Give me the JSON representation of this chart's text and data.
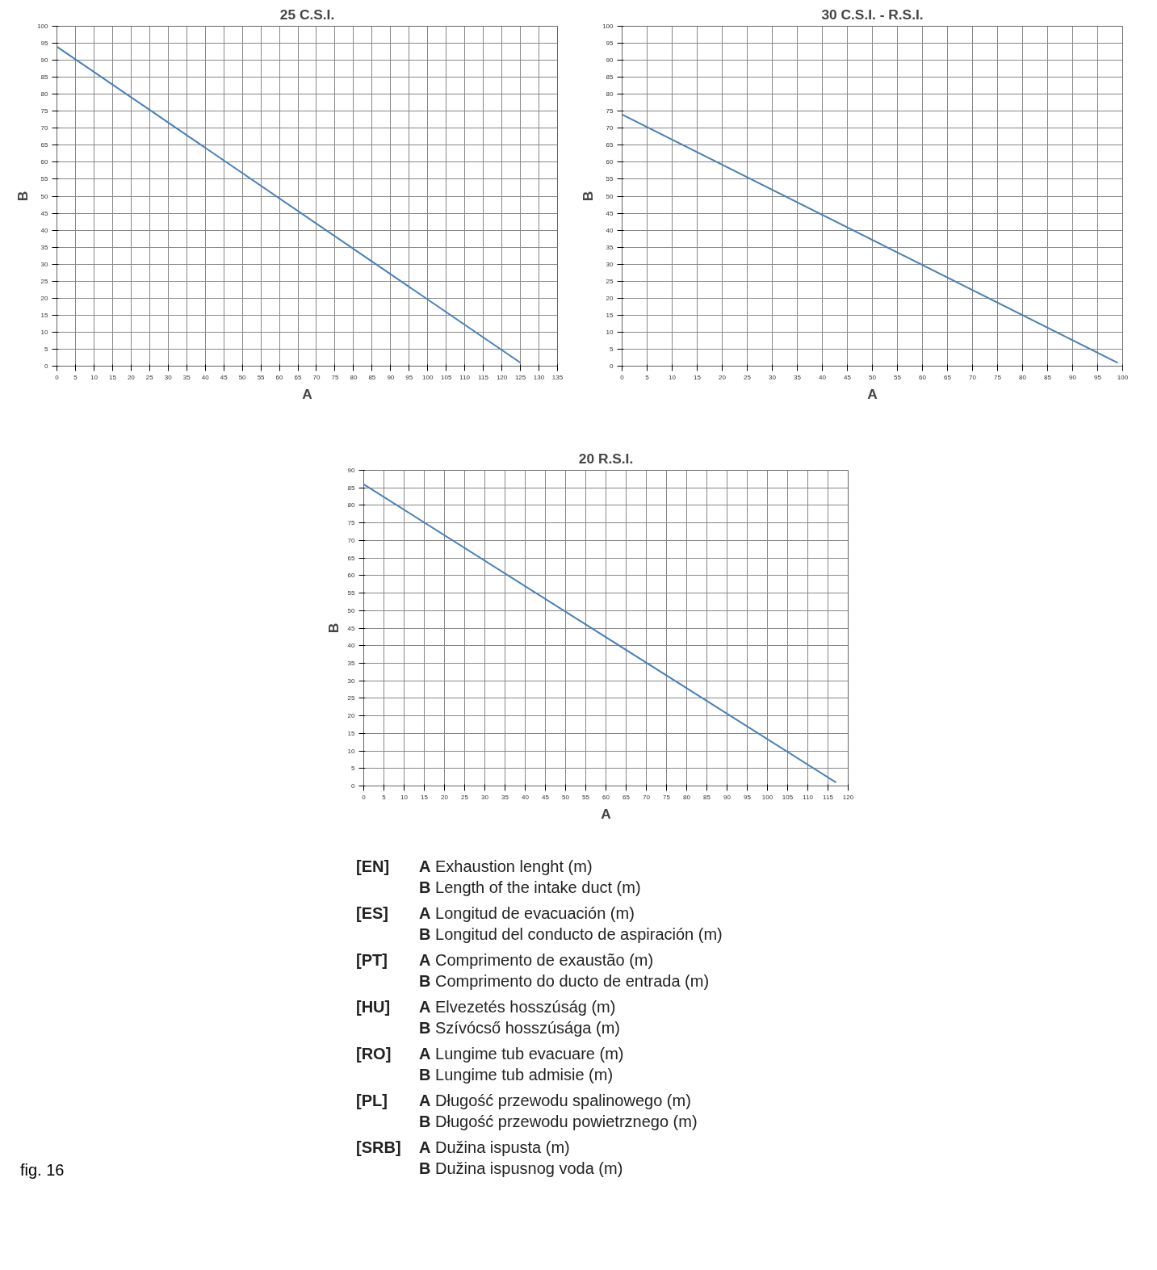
{
  "chart_data": [
    {
      "type": "line",
      "title": "25 C.S.I.",
      "xlabel": "A",
      "ylabel": "B",
      "x": [
        0,
        125
      ],
      "series": [
        {
          "color": "#4a7ebb",
          "values": [
            94,
            1
          ]
        }
      ],
      "xlim": [
        0,
        135
      ],
      "ylim": [
        0,
        100
      ],
      "xticks": [
        0,
        5,
        10,
        15,
        20,
        25,
        30,
        35,
        40,
        45,
        50,
        55,
        60,
        65,
        70,
        75,
        80,
        85,
        90,
        95,
        100,
        105,
        110,
        115,
        120,
        125,
        130,
        135
      ],
      "yticks": [
        0,
        5,
        10,
        15,
        20,
        25,
        30,
        35,
        40,
        45,
        50,
        55,
        60,
        65,
        70,
        75,
        80,
        85,
        90,
        95,
        100
      ],
      "grid": true
    },
    {
      "type": "line",
      "title": "30 C.S.I. - R.S.I.",
      "xlabel": "A",
      "ylabel": "B",
      "x": [
        0,
        99
      ],
      "series": [
        {
          "color": "#4a7ebb",
          "values": [
            74,
            1
          ]
        }
      ],
      "xlim": [
        0,
        100
      ],
      "ylim": [
        0,
        100
      ],
      "xticks": [
        0,
        5,
        10,
        15,
        20,
        25,
        30,
        35,
        40,
        45,
        50,
        55,
        60,
        65,
        70,
        75,
        80,
        85,
        90,
        95,
        100
      ],
      "yticks": [
        0,
        5,
        10,
        15,
        20,
        25,
        30,
        35,
        40,
        45,
        50,
        55,
        60,
        65,
        70,
        75,
        80,
        85,
        90,
        95,
        100
      ],
      "grid": true
    },
    {
      "type": "line",
      "title": "20 R.S.I.",
      "xlabel": "A",
      "ylabel": "B",
      "x": [
        0,
        117
      ],
      "series": [
        {
          "color": "#4a7ebb",
          "values": [
            86,
            1
          ]
        }
      ],
      "xlim": [
        0,
        120
      ],
      "ylim": [
        0,
        90
      ],
      "xticks": [
        0,
        5,
        10,
        15,
        20,
        25,
        30,
        35,
        40,
        45,
        50,
        55,
        60,
        65,
        70,
        75,
        80,
        85,
        90,
        95,
        100,
        105,
        110,
        115,
        120
      ],
      "yticks": [
        0,
        5,
        10,
        15,
        20,
        25,
        30,
        35,
        40,
        45,
        50,
        55,
        60,
        65,
        70,
        75,
        80,
        85,
        90
      ],
      "grid": true
    },
    {
      "type": "other",
      "title": "fig. 16",
      "annotations": [
        "[EN] A Exhaustion lenght (m)",
        "B Length of the intake duct (m)",
        "[ES] A Longitud de evacuación (m)",
        "B Longitud del conducto de aspiración (m)",
        "[PT] A Comprimento de exaustão (m)",
        "B Comprimento do ducto de entrada (m)",
        "[HU] A Elvezetés hosszúság (m)",
        "B Szívócső hosszúsága (m)",
        "[RO] A Lungime tub evacuare (m)",
        "B Lungime tub admisie (m)",
        "[PL] A Długość przewodu spalinowego (m)",
        "B Długość przewodu powietrznego (m)",
        "[SRB] A Dužina ispusta (m)",
        "B Dužina ispusnog voda (m)"
      ]
    }
  ]
}
